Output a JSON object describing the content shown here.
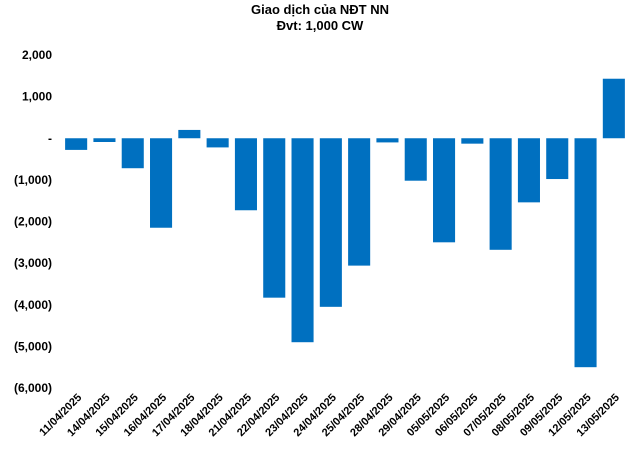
{
  "chart_data": {
    "type": "bar",
    "title": "Giao dịch của NĐT NN",
    "subtitle": "Đvt: 1,000 CW",
    "xlabel": "",
    "ylabel": "",
    "ylim": [
      -6000,
      2000
    ],
    "yticks": [
      2000,
      1000,
      0,
      -1000,
      -2000,
      -3000,
      -4000,
      -5000,
      -6000
    ],
    "ytick_labels": [
      "2,000",
      "1,000",
      "-",
      "(1,000)",
      "(2,000)",
      "(3,000)",
      "(4,000)",
      "(5,000)",
      "(6,000)"
    ],
    "grid": false,
    "legend": "none",
    "bar_color": "#0070C0",
    "categories": [
      "11/04/2025",
      "14/04/2025",
      "15/04/2025",
      "16/04/2025",
      "17/04/2025",
      "18/04/2025",
      "21/04/2025",
      "22/04/2025",
      "23/04/2025",
      "24/04/2025",
      "25/04/2025",
      "28/04/2025",
      "29/04/2025",
      "05/05/2025",
      "06/05/2025",
      "07/05/2025",
      "08/05/2025",
      "09/05/2025",
      "12/05/2025",
      "13/05/2025"
    ],
    "values": [
      -280,
      -90,
      -720,
      -2150,
      200,
      -220,
      -1730,
      -3830,
      -4900,
      -4050,
      -3060,
      -100,
      -1020,
      -2500,
      -130,
      -2680,
      -1540,
      -980,
      -5500,
      1430
    ]
  }
}
